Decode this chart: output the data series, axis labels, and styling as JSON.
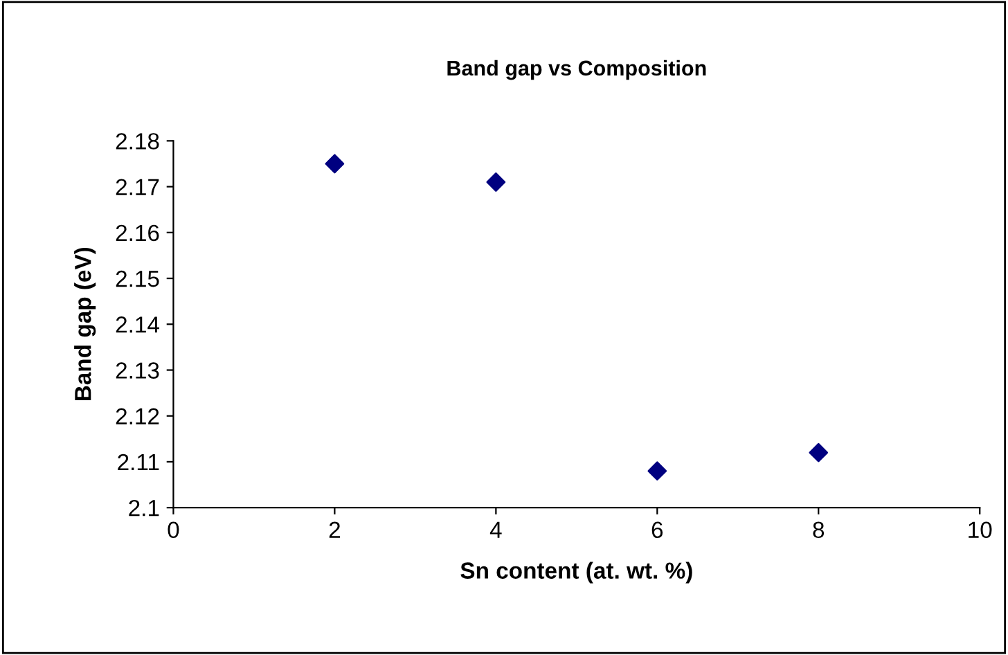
{
  "chart_data": {
    "type": "scatter",
    "title": "Band gap vs Composition",
    "xlabel": "Sn content (at. wt. %)",
    "ylabel": "Band gap (eV)",
    "x": [
      2,
      4,
      6,
      8
    ],
    "series": [
      {
        "color": "#000080",
        "values": [
          2.175,
          2.171,
          2.108,
          2.112
        ]
      }
    ],
    "xlim": [
      0,
      10
    ],
    "xticks": [
      0,
      2,
      4,
      6,
      8,
      10
    ],
    "ylim": [
      2.1,
      2.18
    ],
    "yticks": [
      {
        "value": 2.1,
        "label": "2.1"
      },
      2.11,
      2.12,
      2.13,
      2.14,
      2.15,
      2.16,
      2.17,
      2.18
    ],
    "marker": "diamond",
    "grid": false,
    "legend": false
  }
}
